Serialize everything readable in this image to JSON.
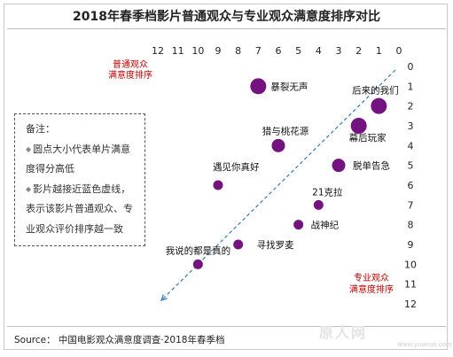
{
  "title": "2018年春季档影片普通观众与专业观众满意度排序对比",
  "source": "Source： 中国电影观众满意度调查·2018年春季档",
  "note": {
    "heading": "备注：",
    "items": [
      "圆点大小代表单片满意度得分高低",
      "影片越接近蓝色虚线，表示该影片普通观众、专业观众评价排序越一致"
    ]
  },
  "watermark": "www.yuanuo.com",
  "chart_data": {
    "type": "scatter",
    "title": "2018年春季档影片普通观众与专业观众满意度排序对比",
    "xlabel": "普通观众满意度排序",
    "ylabel": "专业观众满意度排序",
    "xlim": [
      12,
      0
    ],
    "ylim": [
      0,
      12
    ],
    "x_ticks": [
      12,
      11,
      10,
      9,
      8,
      7,
      6,
      5,
      4,
      3,
      2,
      1,
      0
    ],
    "y_ticks": [
      0,
      1,
      2,
      3,
      4,
      5,
      6,
      7,
      8,
      9,
      10,
      11,
      12
    ],
    "diagonal": "dashed",
    "colors": {
      "points": "#74127f",
      "diagonal": "#2f7bbf",
      "axis_label": "#c00000"
    },
    "points": [
      {
        "name": "暴裂无声",
        "x": 7,
        "y": 1,
        "size": "large"
      },
      {
        "name": "后来的我们",
        "x": 1,
        "y": 2,
        "size": "large"
      },
      {
        "name": "幕后玩家",
        "x": 2,
        "y": 3,
        "size": "large"
      },
      {
        "name": "猎与桃花源",
        "x": 6,
        "y": 4,
        "size": "medium"
      },
      {
        "name": "脱单告急",
        "x": 3,
        "y": 5,
        "size": "medium"
      },
      {
        "name": "遇见你真好",
        "x": 9,
        "y": 6,
        "size": "small"
      },
      {
        "name": "21克拉",
        "x": 4,
        "y": 7,
        "size": "small"
      },
      {
        "name": "战神纪",
        "x": 5,
        "y": 8,
        "size": "small"
      },
      {
        "name": "寻找罗麦",
        "x": 8,
        "y": 9,
        "size": "small"
      },
      {
        "name": "我说的都是真的",
        "x": 10,
        "y": 10,
        "size": "small"
      }
    ]
  }
}
